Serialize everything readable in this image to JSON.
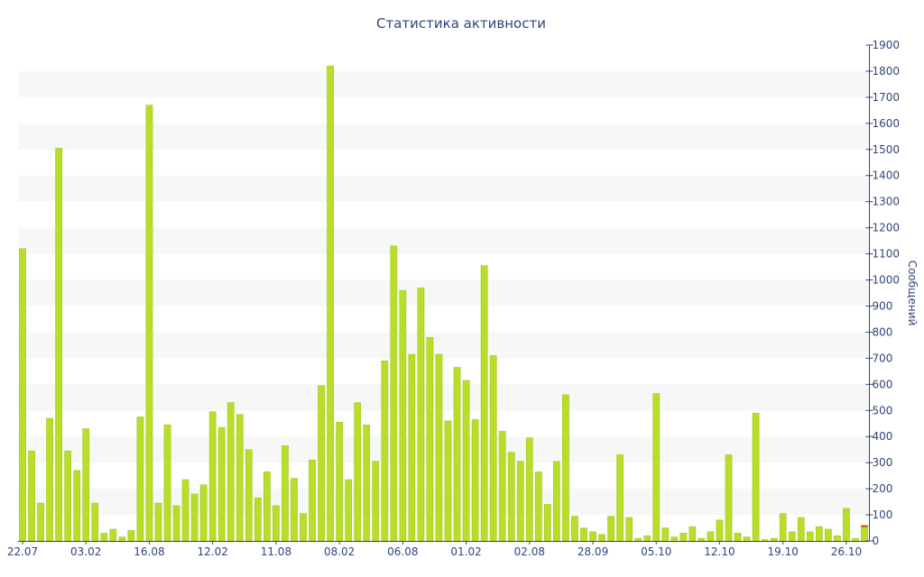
{
  "chart_data": {
    "type": "bar",
    "title": "Статистика активности",
    "ylabel": "Сообщений",
    "ylim": [
      0,
      1900
    ],
    "yticks": [
      0,
      100,
      200,
      300,
      400,
      500,
      600,
      700,
      800,
      900,
      1000,
      1100,
      1200,
      1300,
      1400,
      1500,
      1600,
      1700,
      1800,
      1900
    ],
    "x_tick_labels": [
      "22.07",
      "03.02",
      "16.08",
      "12.02",
      "11.08",
      "08.02",
      "06.08",
      "01.02",
      "02.08",
      "28.09",
      "05.10",
      "12.10",
      "19.10",
      "26.10"
    ],
    "x_tick_bar_index": [
      0,
      7,
      14,
      21,
      28,
      35,
      42,
      49,
      56,
      63,
      70,
      77,
      84,
      91
    ],
    "y_axis_position": "right",
    "grid": "alternating horizontal bands",
    "colors": {
      "bar": "#b8de2a",
      "bar_stroke": "#9cc214",
      "bar_highlight": "#d0501f",
      "axis": "#33457a",
      "band": "#f7f7f7"
    },
    "series": [
      {
        "values": [
          1120,
          345,
          145,
          470,
          1505,
          345,
          270,
          430,
          145,
          30,
          45,
          15,
          40,
          475,
          1670,
          145,
          445,
          135,
          235,
          180,
          215,
          495,
          435,
          530,
          485,
          350,
          165,
          265,
          135,
          365,
          240,
          105,
          310,
          595,
          1820,
          455,
          235,
          530,
          445,
          305,
          690,
          1130,
          960,
          715,
          970,
          780,
          715,
          460,
          665,
          615,
          465,
          1055,
          710,
          420,
          340,
          305,
          395,
          265,
          140,
          305,
          560,
          95,
          50,
          35,
          25,
          95,
          330,
          90,
          10,
          20,
          565,
          50,
          15,
          30,
          55,
          10,
          35,
          80,
          330,
          30,
          15,
          490,
          5,
          10,
          105,
          35,
          90,
          35,
          55,
          45,
          20,
          125,
          10,
          60
        ]
      }
    ]
  }
}
